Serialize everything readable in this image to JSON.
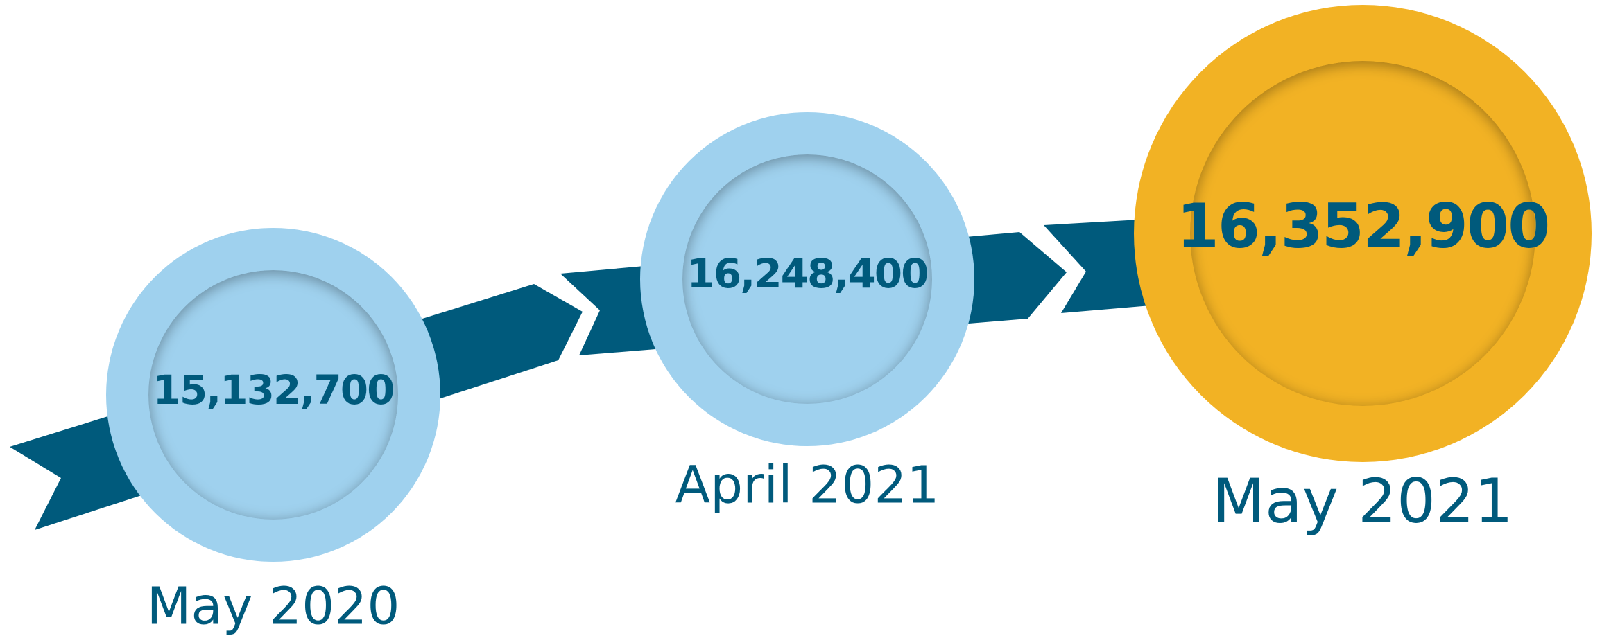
{
  "colors": {
    "arrow": "#005a7c",
    "ring_past": "#9fd1ee",
    "ring_current": "#f2b224",
    "inner": "#ffffff",
    "text": "#005a7c"
  },
  "milestones": [
    {
      "value": "15,132,700",
      "date": "May 2020",
      "highlight": false
    },
    {
      "value": "16,248,400",
      "date": "April 2021",
      "highlight": false
    },
    {
      "value": "16,352,900",
      "date": "May 2021",
      "highlight": true
    }
  ]
}
